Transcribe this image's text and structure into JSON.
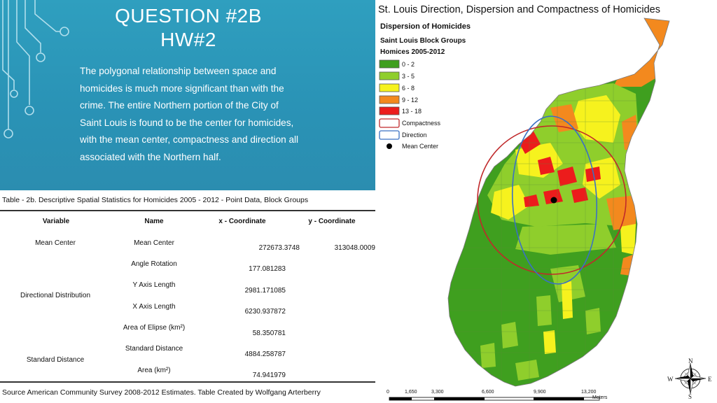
{
  "slide": {
    "title_line1": "QUESTION #2B",
    "title_line2": "HW#2",
    "body": "The polygonal relationship between space and homicides is much more significant than with the crime. The entire Northern portion of the City of Saint Louis is found to be the center for homicides, with the mean center, compactness and direction all associated with the Northern half."
  },
  "table": {
    "caption": "Table - 2b. Descriptive Spatial Statistics for Homicides 2005 - 2012 - Point Data, Block Groups",
    "headers": [
      "Variable",
      "Name",
      "x - Coordinate",
      "y - Coordinate"
    ],
    "groups": [
      "Mean Center",
      "Directional Distribution",
      "Standard Distance"
    ],
    "rows": [
      {
        "name": "Mean Center",
        "x": "272673.3748",
        "y": "313048.0009"
      },
      {
        "name": "Angle Rotation",
        "x": "177.081283",
        "y": ""
      },
      {
        "name": "Y Axis Length",
        "x": "2981.171085",
        "y": ""
      },
      {
        "name": "X Axis Length",
        "x": "6230.937872",
        "y": ""
      },
      {
        "name": "Area of Elipse (km²)",
        "x": "58.350781",
        "y": ""
      },
      {
        "name": "Standard Distance",
        "x": "4884.258787",
        "y": ""
      },
      {
        "name": "Area (km²)",
        "x": "74.941979",
        "y": ""
      }
    ],
    "source": "Source American Community Survey 2008-2012 Estimates. Table Created by Wolfgang Arterberry"
  },
  "map": {
    "title": "St. Louis Direction, Dispersion and Compactness of Homicides",
    "legend_title": "Dispersion of Homicides",
    "legend_subtitle": "Saint Louis Block Groups",
    "legend_field": "Homices 2005-2012",
    "classes": [
      {
        "label": "0 - 2",
        "color": "#3f9f1f"
      },
      {
        "label": "3 - 5",
        "color": "#8fce2c"
      },
      {
        "label": "6 - 8",
        "color": "#f6f21e"
      },
      {
        "label": "9 - 12",
        "color": "#f3891e"
      },
      {
        "label": "13 - 18",
        "color": "#ec1c1c"
      }
    ],
    "compactness_label": "Compactness",
    "direction_label": "Direction",
    "mean_center_label": "Mean Center",
    "compactness_color": "#c0292b",
    "direction_color": "#3a70c4",
    "scale_ticks": [
      "0",
      "1,650",
      "3,300",
      "6,600",
      "9,900",
      "13,200"
    ],
    "scale_unit": "Meters",
    "compass": {
      "n": "N",
      "s": "S",
      "e": "E",
      "w": "W"
    }
  }
}
